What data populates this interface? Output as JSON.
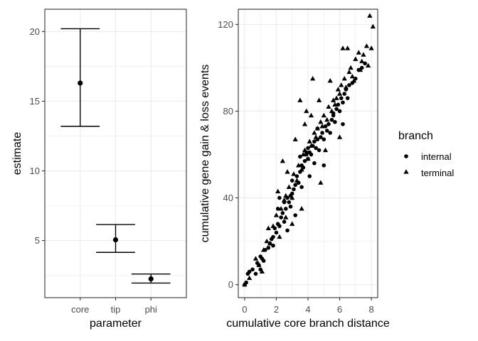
{
  "chart_data": [
    {
      "type": "errorbar",
      "xlabel": "parameter",
      "ylabel": "estimate",
      "categories": [
        "core",
        "tip",
        "phi"
      ],
      "estimate": [
        16.3,
        5.05,
        2.25
      ],
      "lower": [
        13.2,
        4.15,
        1.95
      ],
      "upper": [
        20.2,
        6.15,
        2.6
      ],
      "ylim": [
        0.9,
        21.6
      ],
      "yticks": [
        5,
        10,
        15,
        20
      ],
      "grid": true
    },
    {
      "type": "scatter",
      "xlabel": "cumulative core branch distance",
      "ylabel": "cumulative gene gain & loss events",
      "xlim": [
        -0.4,
        8.4
      ],
      "ylim": [
        -6,
        127
      ],
      "xticks": [
        0,
        2,
        4,
        6,
        8
      ],
      "yticks": [
        0,
        40,
        80,
        120
      ],
      "grid": true,
      "legend": {
        "title": "branch",
        "position": "right",
        "entries": [
          {
            "label": "internal",
            "shape": "circle"
          },
          {
            "label": "terminal",
            "shape": "triangle"
          }
        ]
      },
      "series": [
        {
          "name": "internal",
          "shape": "circle",
          "x": [
            0.0,
            0.1,
            0.2,
            0.3,
            0.5,
            0.7,
            0.8,
            0.9,
            1.0,
            1.0,
            1.1,
            1.2,
            1.3,
            1.5,
            1.6,
            1.7,
            1.8,
            1.9,
            2.0,
            2.1,
            2.1,
            2.2,
            2.3,
            2.4,
            2.5,
            2.5,
            2.6,
            2.7,
            2.8,
            2.9,
            3.0,
            3.0,
            3.1,
            3.2,
            3.3,
            3.4,
            3.5,
            3.5,
            3.6,
            3.7,
            3.8,
            3.9,
            4.0,
            4.0,
            4.1,
            4.2,
            4.3,
            4.4,
            4.5,
            4.6,
            4.7,
            4.8,
            4.9,
            5.0,
            5.1,
            5.2,
            5.3,
            5.4,
            5.5,
            5.6,
            5.7,
            5.8,
            5.9,
            6.0,
            6.1,
            6.2,
            6.3,
            6.4,
            6.5,
            6.6,
            6.8,
            7.0,
            7.2,
            7.4,
            7.6,
            3.2,
            3.6,
            4.4,
            2.9,
            4.1,
            5.0,
            2.2,
            3.9,
            4.6,
            1.8,
            3.4,
            5.6,
            6.2,
            2.7
          ],
          "y": [
            0,
            1,
            5,
            6,
            7,
            5,
            10,
            9,
            13,
            7,
            12,
            11,
            16,
            17,
            19,
            21,
            22,
            26,
            24,
            28,
            35,
            27,
            31,
            33,
            29,
            38,
            35,
            40,
            38,
            36,
            42,
            48,
            44,
            46,
            50,
            47,
            52,
            59,
            55,
            54,
            57,
            60,
            58,
            63,
            61,
            60,
            64,
            66,
            63,
            67,
            62,
            68,
            70,
            67,
            73,
            71,
            74,
            70,
            76,
            79,
            75,
            81,
            83,
            80,
            86,
            84,
            88,
            90,
            86,
            92,
            93,
            95,
            99,
            100,
            102,
            32,
            45,
            56,
            41,
            50,
            55,
            40,
            61,
            72,
            18,
            47,
            78,
            74,
            25
          ]
        },
        {
          "name": "terminal",
          "shape": "triangle",
          "x": [
            0.0,
            0.3,
            0.7,
            0.9,
            1.2,
            1.4,
            1.6,
            1.8,
            2.0,
            2.2,
            2.3,
            2.5,
            2.6,
            2.8,
            3.0,
            3.1,
            3.3,
            3.4,
            3.6,
            3.7,
            3.8,
            4.0,
            4.1,
            4.2,
            4.4,
            4.5,
            4.6,
            4.8,
            4.9,
            5.0,
            5.2,
            5.3,
            5.5,
            5.6,
            5.8,
            5.9,
            6.0,
            6.1,
            6.3,
            6.4,
            6.6,
            6.7,
            6.8,
            7.0,
            7.2,
            7.4,
            7.5,
            7.7,
            7.9,
            8.0,
            8.1,
            7.8,
            6.2,
            6.5,
            4.3,
            3.5,
            2.4,
            1.5,
            5.4,
            4.7,
            3.9,
            3.2,
            2.7,
            5.7,
            6.9,
            7.3,
            4.8,
            3.6,
            2.1,
            1.1,
            4.2,
            5.1,
            6.0,
            3.0,
            2.6,
            3.8
          ],
          "y": [
            0,
            3,
            12,
            9,
            16,
            20,
            19,
            27,
            32,
            22,
            35,
            39,
            31,
            45,
            40,
            51,
            48,
            55,
            53,
            60,
            62,
            58,
            66,
            64,
            70,
            68,
            72,
            75,
            73,
            78,
            76,
            82,
            80,
            85,
            86,
            90,
            88,
            92,
            95,
            91,
            98,
            100,
            96,
            104,
            107,
            103,
            106,
            110,
            124,
            109,
            119,
            101,
            109,
            109,
            95,
            85,
            57,
            26,
            94,
            85,
            80,
            67,
            52,
            83,
            94,
            99,
            47,
            35,
            43,
            6,
            78,
            62,
            68,
            28,
            41,
            74
          ]
        }
      ]
    }
  ]
}
